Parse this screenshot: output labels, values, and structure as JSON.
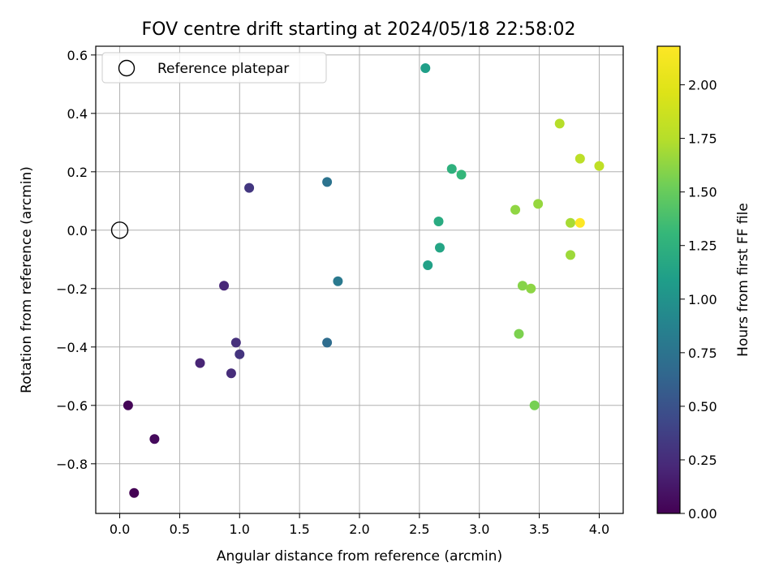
{
  "chart_data": {
    "type": "scatter",
    "title": "FOV centre drift starting at 2024/05/18 22:58:02",
    "xlabel": "Angular distance from reference (arcmin)",
    "ylabel": "Rotation from reference (arcmin)",
    "xlim": [
      -0.2,
      4.2
    ],
    "ylim": [
      -0.97,
      0.63
    ],
    "x_ticks": [
      "0.0",
      "0.5",
      "1.0",
      "1.5",
      "2.0",
      "2.5",
      "3.0",
      "3.5",
      "4.0"
    ],
    "y_ticks": [
      "−0.8",
      "−0.6",
      "−0.4",
      "−0.2",
      "0.0",
      "0.2",
      "0.4",
      "0.6"
    ],
    "grid": true,
    "legend": {
      "label": "Reference platepar",
      "placement": "top-left"
    },
    "reference_point": {
      "x": 0.0,
      "y": 0.0
    },
    "colorbar": {
      "label": "Hours from first FF file",
      "colormap": "viridis",
      "range": [
        0.0,
        2.18
      ],
      "ticks": [
        "0.00",
        "0.25",
        "0.50",
        "0.75",
        "1.00",
        "1.25",
        "1.50",
        "1.75",
        "2.00"
      ]
    },
    "points": [
      {
        "x": 0.12,
        "y": -0.9,
        "hours": 0.0
      },
      {
        "x": 0.07,
        "y": -0.6,
        "hours": 0.02
      },
      {
        "x": 0.29,
        "y": -0.715,
        "hours": 0.05
      },
      {
        "x": 0.67,
        "y": -0.455,
        "hours": 0.2
      },
      {
        "x": 0.87,
        "y": -0.19,
        "hours": 0.22
      },
      {
        "x": 0.93,
        "y": -0.49,
        "hours": 0.25
      },
      {
        "x": 0.97,
        "y": -0.385,
        "hours": 0.27
      },
      {
        "x": 1.0,
        "y": -0.425,
        "hours": 0.3
      },
      {
        "x": 1.08,
        "y": 0.145,
        "hours": 0.32
      },
      {
        "x": 1.73,
        "y": -0.385,
        "hours": 0.7
      },
      {
        "x": 1.73,
        "y": 0.165,
        "hours": 0.75
      },
      {
        "x": 1.82,
        "y": -0.175,
        "hours": 0.8
      },
      {
        "x": 2.55,
        "y": 0.555,
        "hours": 1.1
      },
      {
        "x": 2.57,
        "y": -0.12,
        "hours": 1.12
      },
      {
        "x": 2.67,
        "y": -0.06,
        "hours": 1.15
      },
      {
        "x": 2.66,
        "y": 0.03,
        "hours": 1.2
      },
      {
        "x": 2.77,
        "y": 0.21,
        "hours": 1.25
      },
      {
        "x": 2.85,
        "y": 0.19,
        "hours": 1.3
      },
      {
        "x": 3.46,
        "y": -0.6,
        "hours": 1.55
      },
      {
        "x": 3.33,
        "y": -0.355,
        "hours": 1.57
      },
      {
        "x": 3.36,
        "y": -0.19,
        "hours": 1.6
      },
      {
        "x": 3.43,
        "y": -0.2,
        "hours": 1.62
      },
      {
        "x": 3.3,
        "y": 0.07,
        "hours": 1.63
      },
      {
        "x": 3.49,
        "y": 0.09,
        "hours": 1.65
      },
      {
        "x": 3.76,
        "y": -0.085,
        "hours": 1.67
      },
      {
        "x": 3.76,
        "y": 0.025,
        "hours": 1.7
      },
      {
        "x": 3.67,
        "y": 0.365,
        "hours": 1.75
      },
      {
        "x": 3.84,
        "y": 0.245,
        "hours": 1.78
      },
      {
        "x": 4.0,
        "y": 0.22,
        "hours": 1.8
      },
      {
        "x": 3.84,
        "y": 0.025,
        "hours": 2.18
      }
    ]
  }
}
